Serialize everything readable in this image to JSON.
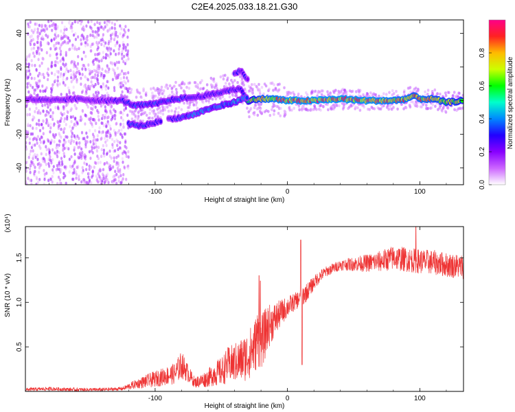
{
  "figure_title": "C2E4.2025.033.18.21.G30",
  "chart_data": [
    {
      "type": "heatmap",
      "xlabel": "Height of straight line (km)",
      "ylabel": "Frequency (Hz)",
      "xlim": [
        -198,
        133
      ],
      "ylim": [
        -50,
        48
      ],
      "xticks": [
        -100,
        0,
        100
      ],
      "yticks": [
        -40,
        -20,
        0,
        20,
        40
      ],
      "colorbar": {
        "label": "Normalized spectral amplitude",
        "range": [
          0.0,
          1.0
        ],
        "ticks": [
          "0.0",
          "0.2",
          "0.4",
          "0.6",
          "0.8"
        ],
        "tick_values": [
          0.0,
          0.2,
          0.4,
          0.6,
          0.8
        ],
        "colors": [
          "#ffffff",
          "#cc66ff",
          "#8800ff",
          "#2200ff",
          "#0088ff",
          "#00ffcc",
          "#00ff00",
          "#ccff00",
          "#ffbb00",
          "#ff2222",
          "#ff0088"
        ]
      },
      "tracks": [
        {
          "x": [
            -198,
            -180,
            -160,
            -140,
            -125,
            -115,
            -100,
            -85,
            -70,
            -55,
            -45,
            -35,
            -30,
            -25,
            -20,
            -10,
            0,
            20,
            40,
            60,
            80,
            90,
            95,
            100,
            110,
            120,
            133
          ],
          "y": [
            1,
            0,
            1,
            0,
            0,
            -3,
            -2,
            1,
            2,
            4,
            6,
            7,
            -1,
            1,
            1,
            1,
            0,
            0,
            1,
            0,
            0,
            1,
            3,
            1,
            1,
            -1,
            0
          ],
          "amp": [
            0.25,
            0.25,
            0.25,
            0.25,
            0.3,
            0.35,
            0.35,
            0.35,
            0.3,
            0.3,
            0.3,
            0.3,
            0.6,
            0.7,
            0.8,
            0.85,
            0.9,
            0.9,
            0.9,
            0.9,
            0.85,
            0.85,
            0.8,
            0.85,
            0.8,
            0.75,
            0.7
          ]
        },
        {
          "x": [
            -120,
            -110,
            -100,
            -95
          ],
          "y": [
            -14,
            -15,
            -13,
            -12
          ],
          "amp": [
            0.35,
            0.35,
            0.3,
            0.3
          ]
        },
        {
          "x": [
            -90,
            -80,
            -70,
            -60,
            -50,
            -40,
            -35,
            -30
          ],
          "y": [
            -11,
            -10,
            -8,
            -5,
            -3,
            -1,
            1,
            2
          ],
          "amp": [
            0.25,
            0.35,
            0.4,
            0.4,
            0.4,
            0.45,
            0.4,
            0.35
          ]
        },
        {
          "x": [
            -40,
            -35,
            -32,
            -30
          ],
          "y": [
            16,
            18,
            14,
            13
          ],
          "amp": [
            0.3,
            0.3,
            0.3,
            0.25
          ]
        }
      ]
    },
    {
      "type": "line",
      "xlabel": "Height of straight line (km)",
      "ylabel": "SNR (10 * v/v)",
      "scale_label": "(x10⁴)",
      "xlim": [
        -198,
        133
      ],
      "ylim": [
        0.0,
        1.85
      ],
      "xticks": [
        -100,
        0,
        100
      ],
      "yticks": [
        0.5,
        1.0,
        1.5
      ],
      "ytick_labels": [
        "0.5",
        "1.0",
        "1.5"
      ],
      "series_color": "#ee3333",
      "series": [
        {
          "x": [
            -198,
            -180,
            -160,
            -140,
            -125,
            -115,
            -105,
            -95,
            -85,
            -80,
            -75,
            -70,
            -65,
            -60,
            -55,
            -50,
            -45,
            -40,
            -35,
            -30,
            -25,
            -22,
            -20,
            -18,
            -15,
            -10,
            -5,
            0,
            5,
            10,
            12,
            15,
            20,
            25,
            30,
            40,
            50,
            60,
            70,
            80,
            90,
            100,
            110,
            120,
            133
          ],
          "y": [
            0.02,
            0.03,
            0.02,
            0.02,
            0.03,
            0.08,
            0.12,
            0.16,
            0.2,
            0.3,
            0.2,
            0.1,
            0.12,
            0.15,
            0.2,
            0.22,
            0.3,
            0.32,
            0.35,
            0.4,
            0.5,
            0.62,
            0.55,
            0.6,
            0.72,
            0.8,
            0.88,
            0.95,
            1.0,
            1.05,
            1.08,
            1.12,
            1.22,
            1.3,
            1.35,
            1.42,
            1.43,
            1.44,
            1.46,
            1.5,
            1.48,
            1.46,
            1.45,
            1.42,
            1.4
          ],
          "noise": [
            0.02,
            0.02,
            0.02,
            0.02,
            0.02,
            0.05,
            0.08,
            0.1,
            0.12,
            0.16,
            0.1,
            0.06,
            0.08,
            0.1,
            0.14,
            0.16,
            0.2,
            0.22,
            0.25,
            0.28,
            0.3,
            0.35,
            0.3,
            0.3,
            0.25,
            0.2,
            0.15,
            0.12,
            0.1,
            0.1,
            0.12,
            0.1,
            0.08,
            0.07,
            0.06,
            0.06,
            0.08,
            0.1,
            0.12,
            0.14,
            0.14,
            0.14,
            0.14,
            0.14,
            0.14
          ]
        }
      ],
      "spikes": [
        {
          "x": -21.5,
          "y": 1.3
        },
        {
          "x": -20.5,
          "y": 1.24
        },
        {
          "x": 10,
          "y": 1.7
        },
        {
          "x": 11,
          "y": 0.3
        },
        {
          "x": 97,
          "y": 1.85
        }
      ]
    }
  ]
}
